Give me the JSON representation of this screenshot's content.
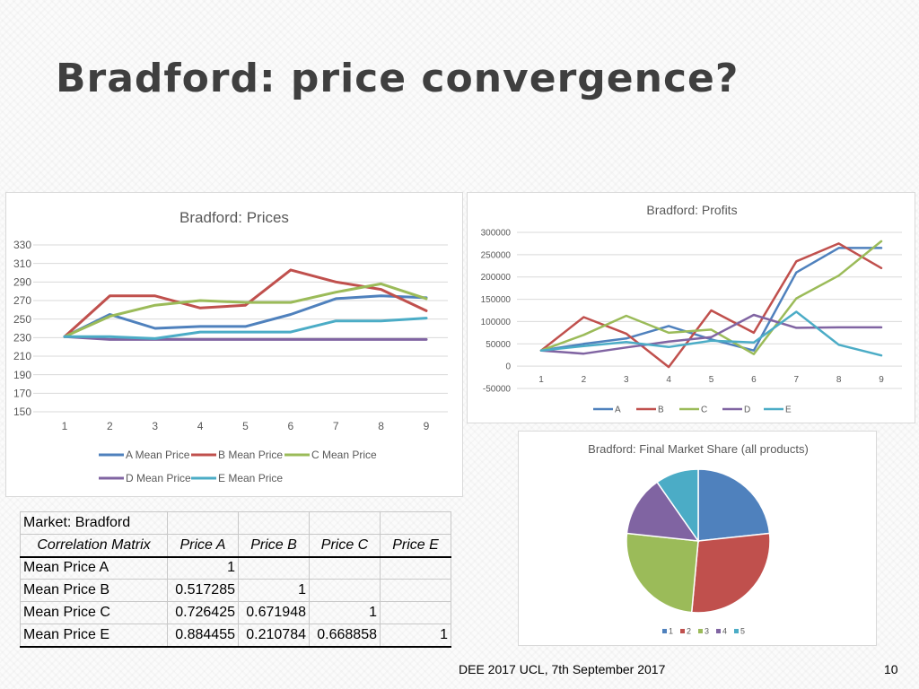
{
  "slide": {
    "title": "Bradford: price convergence?",
    "footer": "DEE 2017 UCL, 7th September 2017",
    "page_number": "10"
  },
  "chart_data": [
    {
      "id": "prices",
      "type": "line",
      "title": "Bradford: Prices",
      "x": [
        1,
        2,
        3,
        4,
        5,
        6,
        7,
        8,
        9
      ],
      "ylim": [
        150,
        330
      ],
      "yticks": [
        150,
        170,
        190,
        210,
        230,
        250,
        270,
        290,
        310,
        330
      ],
      "grid": true,
      "legend_position": "bottom",
      "series": [
        {
          "name": "A Mean Price",
          "color": "#4f81bd",
          "values": [
            231,
            255,
            240,
            242,
            242,
            255,
            272,
            275,
            273
          ]
        },
        {
          "name": "B Mean Price",
          "color": "#c0504d",
          "values": [
            231,
            275,
            275,
            262,
            265,
            303,
            290,
            282,
            259
          ]
        },
        {
          "name": "C Mean Price",
          "color": "#9bbb59",
          "values": [
            231,
            253,
            265,
            270,
            268,
            268,
            279,
            288,
            272
          ]
        },
        {
          "name": "D Mean Price",
          "color": "#8064a2",
          "values": [
            231,
            228,
            228,
            228,
            228,
            228,
            228,
            228,
            228
          ]
        },
        {
          "name": "E Mean Price",
          "color": "#4bacc6",
          "values": [
            231,
            231,
            229,
            236,
            236,
            236,
            248,
            248,
            251
          ]
        }
      ]
    },
    {
      "id": "profits",
      "type": "line",
      "title": "Bradford: Profits",
      "x": [
        1,
        2,
        3,
        4,
        5,
        6,
        7,
        8,
        9
      ],
      "ylim": [
        -50000,
        300000
      ],
      "yticks": [
        -50000,
        0,
        50000,
        100000,
        150000,
        200000,
        250000,
        300000
      ],
      "grid": true,
      "legend_position": "bottom",
      "series": [
        {
          "name": "A",
          "color": "#4f81bd",
          "values": [
            35000,
            50000,
            62000,
            90000,
            60000,
            35000,
            210000,
            265000,
            265000
          ]
        },
        {
          "name": "B",
          "color": "#c0504d",
          "values": [
            35000,
            110000,
            73000,
            -2000,
            125000,
            75000,
            235000,
            275000,
            220000
          ]
        },
        {
          "name": "C",
          "color": "#9bbb59",
          "values": [
            35000,
            70000,
            113000,
            75000,
            82000,
            27000,
            152000,
            203000,
            280000
          ]
        },
        {
          "name": "D",
          "color": "#8064a2",
          "values": [
            35000,
            28000,
            42000,
            55000,
            65000,
            115000,
            86000,
            87000,
            87000
          ]
        },
        {
          "name": "E",
          "color": "#4bacc6",
          "values": [
            35000,
            45000,
            54000,
            43000,
            57000,
            53000,
            122000,
            48000,
            24000
          ]
        }
      ]
    },
    {
      "id": "share",
      "type": "pie",
      "title": "Bradford: Final Market Share (all products)",
      "legend_position": "bottom",
      "slices": [
        {
          "label": "1",
          "value": 24,
          "color": "#4f81bd"
        },
        {
          "label": "2",
          "value": 29,
          "color": "#c0504d"
        },
        {
          "label": "3",
          "value": 26,
          "color": "#9bbb59"
        },
        {
          "label": "4",
          "value": 14,
          "color": "#8064a2"
        },
        {
          "label": "5",
          "value": 10,
          "color": "#4bacc6"
        }
      ]
    }
  ],
  "table": {
    "market": "Market: Bradford",
    "subtitle": "Correlation Matrix",
    "headers": [
      "Price A",
      "Price B",
      "Price C",
      "Price E"
    ],
    "rows": [
      {
        "label": "Mean Price A",
        "cells": [
          "1",
          "",
          "",
          ""
        ]
      },
      {
        "label": "Mean Price B",
        "cells": [
          "0.517285",
          "1",
          "",
          ""
        ]
      },
      {
        "label": "Mean Price C",
        "cells": [
          "0.726425",
          "0.671948",
          "1",
          ""
        ]
      },
      {
        "label": "Mean Price E",
        "cells": [
          "0.884455",
          "0.210784",
          "0.668858",
          "1"
        ]
      }
    ]
  }
}
